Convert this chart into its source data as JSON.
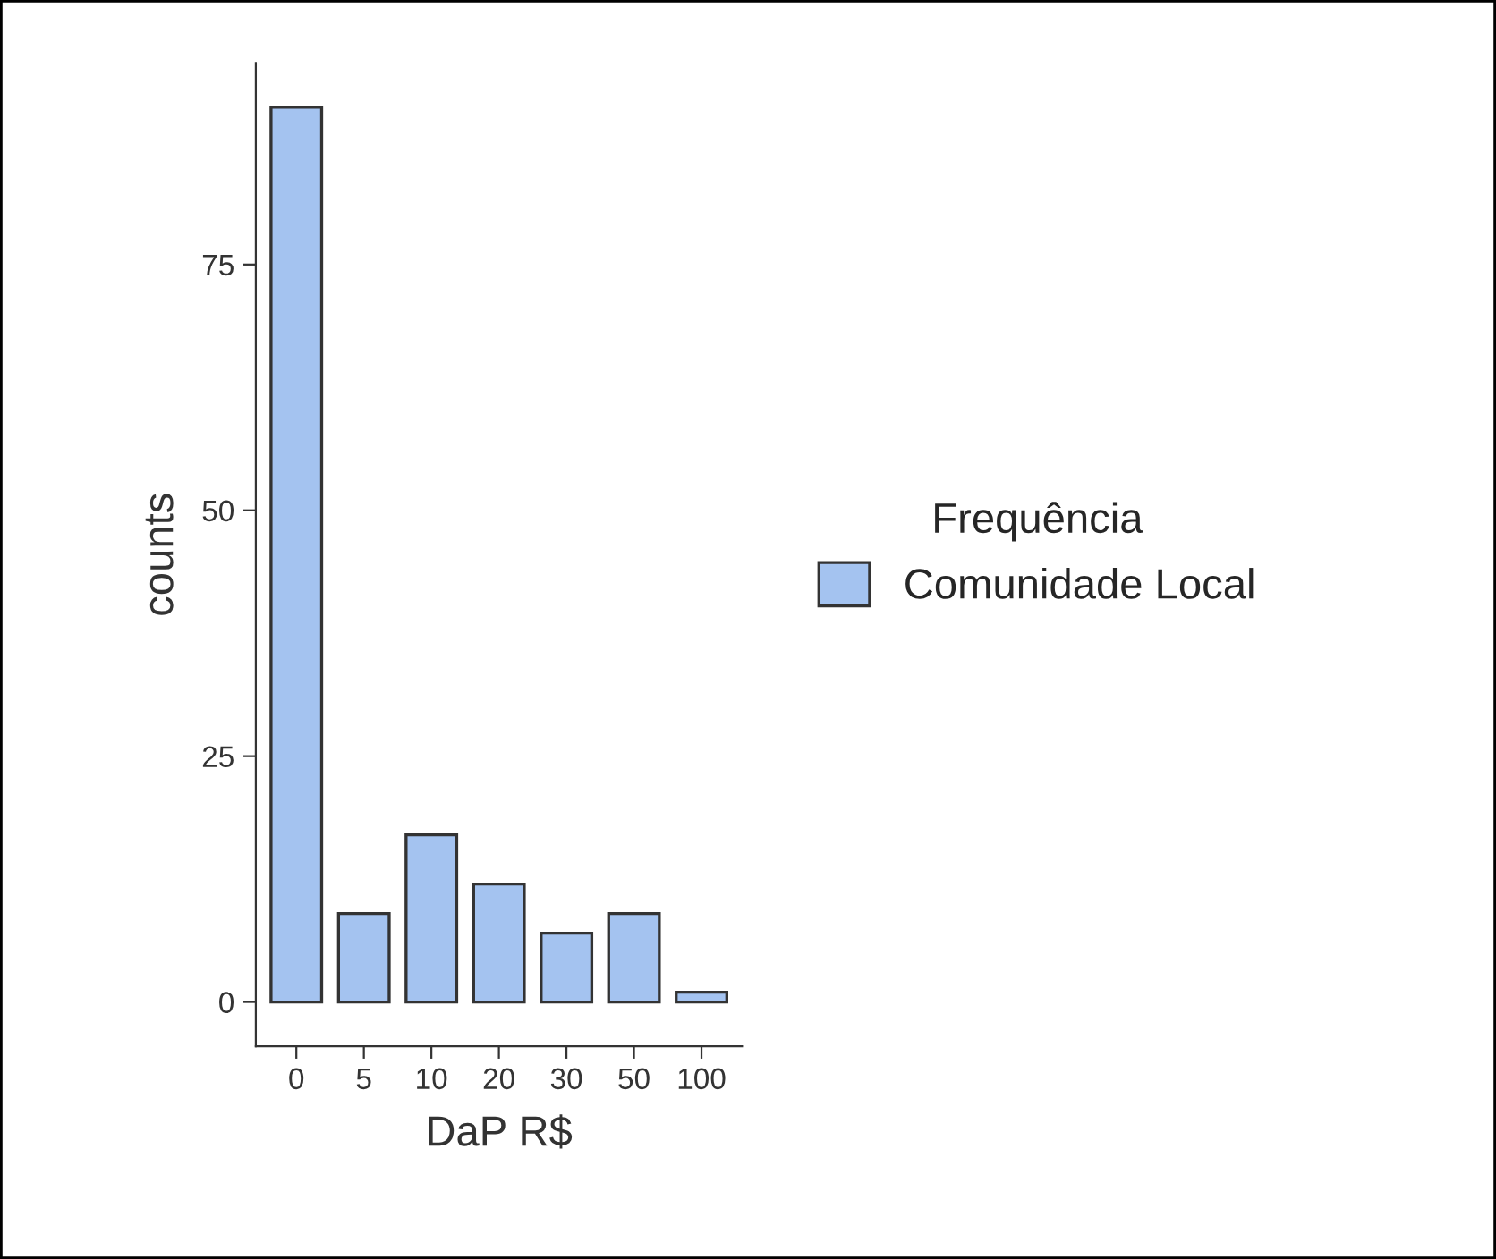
{
  "chart_data": {
    "type": "bar",
    "xlabel": "DaP R$",
    "ylabel": "counts",
    "legend_title": "Frequência",
    "categories": [
      "0",
      "5",
      "10",
      "20",
      "30",
      "50",
      "100"
    ],
    "series": [
      {
        "name": "Comunidade Local",
        "color": "#a4c3f0",
        "values": [
          91,
          9,
          17,
          12,
          7,
          9,
          1
        ]
      }
    ],
    "ylim": [
      -4.5,
      95.5
    ],
    "yticks": [
      0,
      25,
      50,
      75
    ],
    "grid": false,
    "legend": "right"
  }
}
